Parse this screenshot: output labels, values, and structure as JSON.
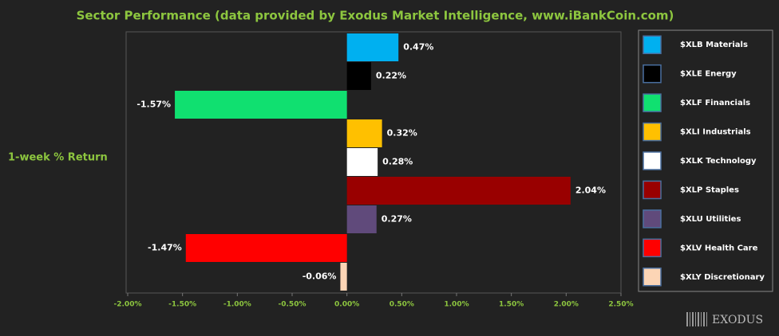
{
  "chart_data": {
    "type": "bar",
    "orientation": "horizontal",
    "title": "Sector Performance (data provided by Exodus Market Intelligence, www.iBankCoin.com)",
    "categories": [
      "1-week % Return"
    ],
    "series": [
      {
        "name": "$XLB Materials",
        "color": "#00b0f0",
        "values": [
          0.47
        ],
        "value_labels": [
          "0.47%"
        ]
      },
      {
        "name": "$XLE Energy",
        "color": "#000000",
        "values": [
          0.22
        ],
        "value_labels": [
          "0.22%"
        ]
      },
      {
        "name": "$XLF Financials",
        "color": "#10e070",
        "values": [
          -1.57
        ],
        "value_labels": [
          "-1.57%"
        ]
      },
      {
        "name": "$XLI Industrials",
        "color": "#ffc000",
        "values": [
          0.32
        ],
        "value_labels": [
          "0.32%"
        ]
      },
      {
        "name": "$XLK Technology",
        "color": "#ffffff",
        "values": [
          0.28
        ],
        "value_labels": [
          "0.28%"
        ]
      },
      {
        "name": "$XLP Staples",
        "color": "#990000",
        "values": [
          2.04
        ],
        "value_labels": [
          "2.04%"
        ]
      },
      {
        "name": "$XLU Utilities",
        "color": "#604a7b",
        "values": [
          0.27
        ],
        "value_labels": [
          "0.27%"
        ]
      },
      {
        "name": "$XLV Health Care",
        "color": "#ff0000",
        "values": [
          -1.47
        ],
        "value_labels": [
          "-1.47%"
        ]
      },
      {
        "name": "$XLY Discretionary",
        "color": "#fcd5b5",
        "values": [
          -0.06
        ],
        "value_labels": [
          "-0.06%"
        ]
      }
    ],
    "xlim": [
      -2,
      2.5
    ],
    "xticks": [
      {
        "value": -2,
        "label": "-2.00%"
      },
      {
        "value": -1.5,
        "label": "-1.50%"
      },
      {
        "value": -1,
        "label": "-1.00%"
      },
      {
        "value": -0.5,
        "label": "-0.50%"
      },
      {
        "value": 0,
        "label": "0.00%"
      },
      {
        "value": 0.5,
        "label": "0.50%"
      },
      {
        "value": 1,
        "label": "1.00%"
      },
      {
        "value": 1.5,
        "label": "1.50%"
      },
      {
        "value": 2,
        "label": "2.00%"
      },
      {
        "value": 2.5,
        "label": "2.50%"
      }
    ],
    "legend": "right",
    "watermark": "EXODUS"
  }
}
